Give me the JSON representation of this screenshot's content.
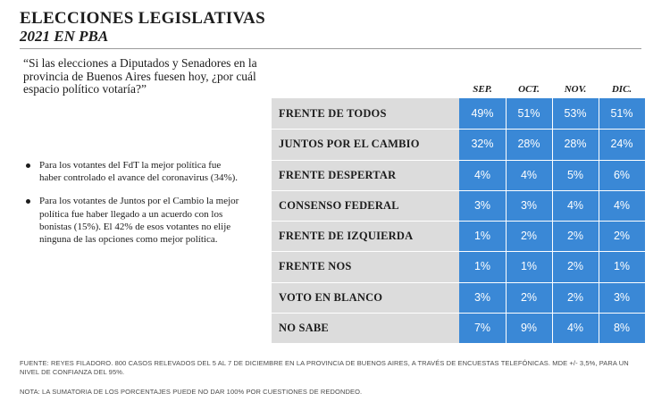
{
  "header": {
    "title": "ELECCIONES LEGISLATIVAS",
    "subtitle": "2021 EN PBA"
  },
  "question": "“Si las elecciones a Diputados y Senadores en la provincia de Buenos Aires fuesen hoy, ¿por cuál espacio político votaría?”",
  "notes": [
    "Para los votantes del FdT la mejor política fue haber controlado el avance del coronavirus (34%).",
    "Para los votantes de Juntos por el Cambio la mejor política fue haber llegado a un acuerdo con los bonistas (15%). El 42% de esos votantes no elije ninguna de las opciones como mejor política."
  ],
  "chart_data": {
    "type": "table",
    "columns": [
      "SEP.",
      "OCT.",
      "NOV.",
      "DIC."
    ],
    "rows": [
      {
        "label": "FRENTE DE TODOS",
        "values": [
          "49%",
          "51%",
          "53%",
          "51%"
        ]
      },
      {
        "label": "JUNTOS POR EL CAMBIO",
        "values": [
          "32%",
          "28%",
          "28%",
          "24%"
        ]
      },
      {
        "label": "FRENTE DESPERTAR",
        "values": [
          "4%",
          "4%",
          "5%",
          "6%"
        ]
      },
      {
        "label": "CONSENSO FEDERAL",
        "values": [
          "3%",
          "3%",
          "4%",
          "4%"
        ]
      },
      {
        "label": "FRENTE DE IZQUIERDA",
        "values": [
          "1%",
          "2%",
          "2%",
          "2%"
        ]
      },
      {
        "label": "FRENTE NOS",
        "values": [
          "1%",
          "1%",
          "2%",
          "1%"
        ]
      },
      {
        "label": "VOTO EN BLANCO",
        "values": [
          "3%",
          "2%",
          "2%",
          "3%"
        ]
      },
      {
        "label": "NO SABE",
        "values": [
          "7%",
          "9%",
          "4%",
          "8%"
        ]
      }
    ],
    "colors": {
      "values_bg": "#3a88d6",
      "labels_bg": "#dcdcdc"
    }
  },
  "footnotes": {
    "source": "FUENTE: REYES FILADORO. 800 CASOS RELEVADOS DEL 5 AL 7 DE DICIEMBRE EN LA PROVINCIA DE BUENOS AIRES, A TRAVÉS DE ENCUESTAS TELEFÓNICAS. MDE +/- 3,5%, PARA UN NIVEL DE CONFIANZA DEL 95%.",
    "note": "NOTA: LA SUMATORIA DE LOS PORCENTAJES PUEDE NO DAR 100% POR CUESTIONES DE REDONDEO."
  }
}
